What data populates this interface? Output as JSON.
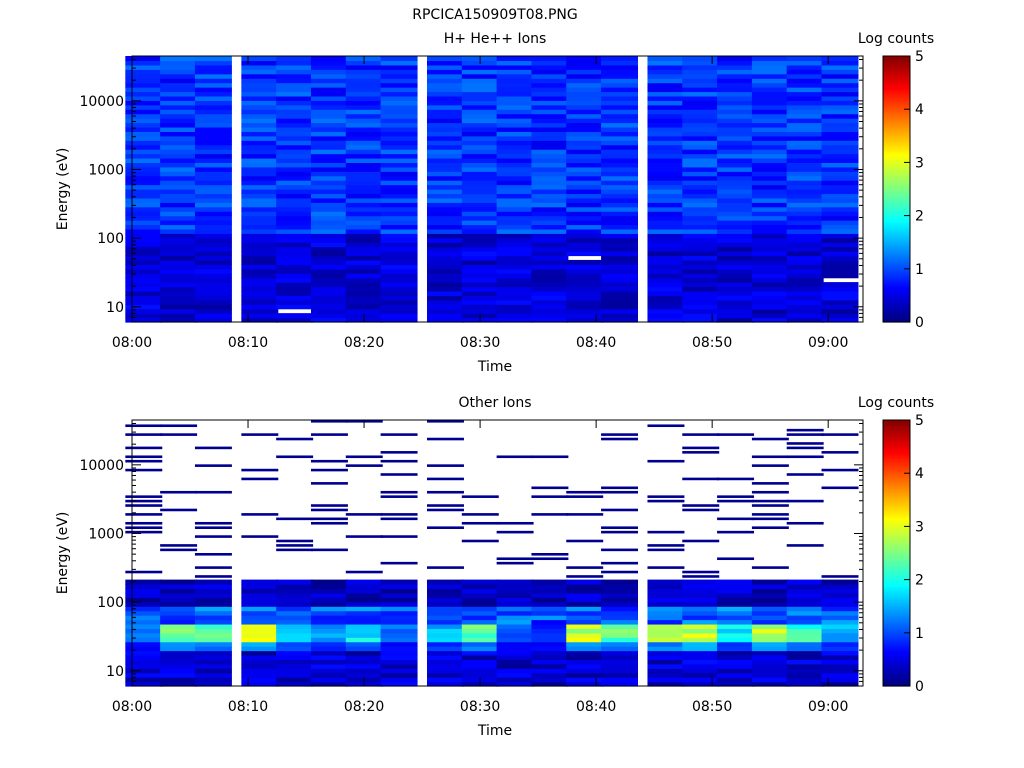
{
  "figure_title": "RPCICA150909T08.PNG",
  "colorbar": {
    "label": "Log counts",
    "ticks": [
      "0",
      "1",
      "2",
      "3",
      "4",
      "5"
    ],
    "range": [
      0,
      5
    ],
    "colormap": "jet"
  },
  "chart_data": [
    {
      "type": "heatmap",
      "title": "H+ He++ Ions",
      "xlabel": "Time",
      "ylabel": "Energy (eV)",
      "x_ticks": [
        "08:00",
        "08:10",
        "08:20",
        "08:30",
        "08:40",
        "08:50",
        "09:00"
      ],
      "x_range": [
        "08:00",
        "09:03"
      ],
      "y_scale": "log",
      "y_ticks": [
        "10",
        "100",
        "1000",
        "10000"
      ],
      "y_range": [
        6,
        45000
      ],
      "time_bins": [
        "08:01",
        "08:04",
        "08:07",
        "08:11",
        "08:14",
        "08:17",
        "08:20",
        "08:23",
        "08:27",
        "08:30",
        "08:33",
        "08:36",
        "08:39",
        "08:42",
        "08:46",
        "08:49",
        "08:52",
        "08:55",
        "08:58",
        "09:01"
      ],
      "pattern": "Uniform low counts (~0.5–1.2 log counts) across all energies; slightly lower values below ~100 eV",
      "empty_bins": [
        {
          "time": "08:13",
          "energy_eV": 9
        },
        {
          "time": "08:38",
          "energy_eV": 50
        },
        {
          "time": "09:01",
          "energy_eV": 25
        }
      ]
    },
    {
      "type": "heatmap",
      "title": "Other Ions",
      "xlabel": "Time",
      "ylabel": "Energy (eV)",
      "x_ticks": [
        "08:00",
        "08:10",
        "08:20",
        "08:30",
        "08:40",
        "08:50",
        "09:00"
      ],
      "x_range": [
        "08:00",
        "09:03"
      ],
      "y_scale": "log",
      "y_ticks": [
        "10",
        "100",
        "1000",
        "10000"
      ],
      "y_range": [
        6,
        45000
      ],
      "time_bins": [
        "08:01",
        "08:04",
        "08:07",
        "08:11",
        "08:14",
        "08:17",
        "08:20",
        "08:23",
        "08:27",
        "08:30",
        "08:33",
        "08:36",
        "08:39",
        "08:42",
        "08:46",
        "08:49",
        "08:52",
        "08:55",
        "08:58",
        "09:01"
      ],
      "pattern": "Continuous signal below ~200 eV with peak (~2.5–3 log counts) near 30–40 eV; sparse single-count lines above 200 eV",
      "peak_band_eV": [
        28,
        45
      ],
      "peak_values": [
        1.2,
        2.6,
        2.4,
        2.9,
        1.6,
        1.4,
        1.8,
        1.2,
        1.5,
        2.4,
        1.0,
        0.8,
        2.8,
        2.4,
        2.5,
        2.9,
        1.8,
        2.7,
        2.1,
        1.5
      ]
    }
  ]
}
